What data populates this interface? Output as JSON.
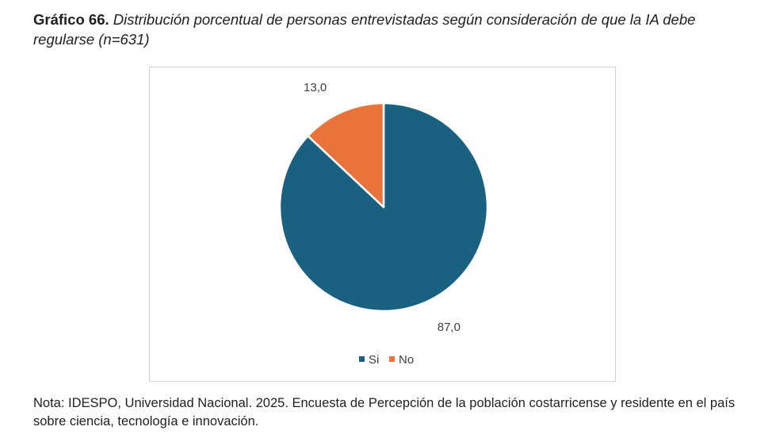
{
  "heading": {
    "label": "Gráfico  66.",
    "description": "Distribución porcentual de personas entrevistadas según consideración de que la IA debe regularse (n=631)"
  },
  "chart_data": {
    "type": "pie",
    "categories": [
      "Si",
      "No"
    ],
    "values": [
      87.0,
      13.0
    ],
    "value_labels": [
      "87,0",
      "13,0"
    ],
    "colors": [
      "#1a6080",
      "#e8743b"
    ],
    "start_angle_deg": 0,
    "direction": "clockwise",
    "legend": {
      "position": "bottom",
      "entries": [
        "Si",
        "No"
      ]
    }
  },
  "note": "Nota: IDESPO, Universidad Nacional. 2025. Encuesta de Percepción de la población costarricense y residente en el país sobre ciencia, tecnología e innovación."
}
